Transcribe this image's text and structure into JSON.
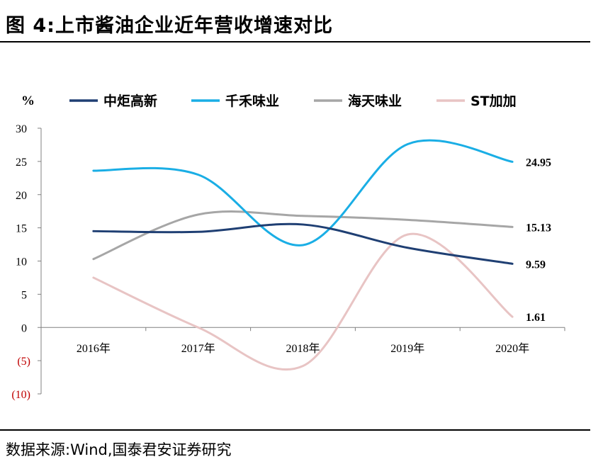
{
  "figure": {
    "title": "图 4:上市酱油企业近年营收增速对比",
    "source": "数据来源:Wind,国泰君安证券研究"
  },
  "chart_data": {
    "type": "line",
    "unit_label": "%",
    "categories": [
      "2016年",
      "2017年",
      "2018年",
      "2019年",
      "2020年"
    ],
    "y_ticks": [
      "30",
      "25",
      "20",
      "15",
      "10",
      "5",
      "0",
      "(5)",
      "(10)"
    ],
    "ylim": [
      -10,
      30
    ],
    "grid": false,
    "legend_position": "top",
    "series": [
      {
        "name": "中炬高新",
        "color": "#1f3f73",
        "values": [
          14.5,
          14.4,
          15.5,
          12.0,
          9.59
        ],
        "end_label": "9.59"
      },
      {
        "name": "千禾味业",
        "color": "#1aaee5",
        "values": [
          23.6,
          23.0,
          12.4,
          27.6,
          24.95
        ],
        "end_label": "24.95"
      },
      {
        "name": "海天味业",
        "color": "#a6a6a6",
        "values": [
          10.3,
          17.0,
          16.8,
          16.2,
          15.13
        ],
        "end_label": "15.13"
      },
      {
        "name": "ST加加",
        "color": "#e8c4c4",
        "values": [
          7.5,
          0.0,
          -5.8,
          14.0,
          1.61
        ],
        "end_label": "1.61"
      }
    ]
  }
}
